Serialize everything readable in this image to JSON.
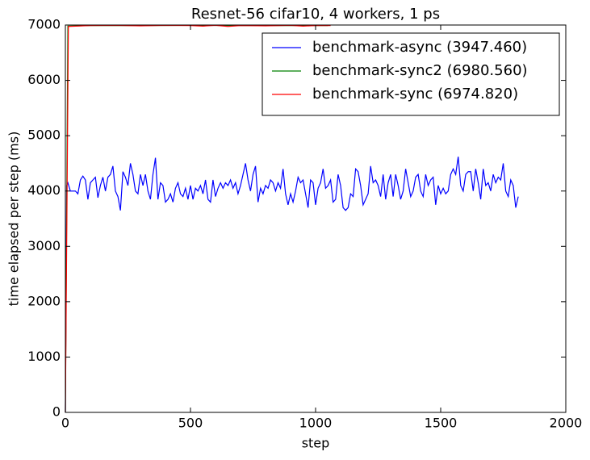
{
  "chart_data": {
    "type": "line",
    "title": "Resnet-56 cifar10, 4 workers, 1 ps",
    "x_label": "step",
    "y_label": "time elapsed per step (ms)",
    "xlim": [
      0,
      2000
    ],
    "xticks": [
      0,
      500,
      1000,
      1500,
      2000
    ],
    "ylim": [
      0,
      7000
    ],
    "yticks": [
      0,
      1000,
      2000,
      3000,
      4000,
      5000,
      6000,
      7000
    ],
    "legend": "upper right",
    "series": [
      {
        "name": "benchmark-async (3947.460)",
        "color": "#0000ff",
        "x": [
          0,
          5,
          10,
          20,
          30,
          40,
          50,
          60,
          70,
          80,
          90,
          100,
          110,
          120,
          130,
          140,
          150,
          160,
          170,
          180,
          190,
          200,
          210,
          220,
          230,
          240,
          250,
          260,
          270,
          280,
          290,
          300,
          310,
          320,
          330,
          340,
          350,
          360,
          370,
          380,
          390,
          400,
          410,
          420,
          430,
          440,
          450,
          460,
          470,
          480,
          490,
          500,
          510,
          520,
          530,
          540,
          550,
          560,
          570,
          580,
          590,
          600,
          610,
          620,
          630,
          640,
          650,
          660,
          670,
          680,
          690,
          700,
          710,
          720,
          730,
          740,
          750,
          760,
          770,
          780,
          790,
          800,
          810,
          820,
          830,
          840,
          850,
          860,
          870,
          880,
          890,
          900,
          910,
          920,
          930,
          940,
          950,
          960,
          970,
          980,
          990,
          1000,
          1010,
          1020,
          1030,
          1040,
          1050,
          1060,
          1070,
          1080,
          1090,
          1100,
          1110,
          1120,
          1130,
          1140,
          1150,
          1160,
          1170,
          1180,
          1190,
          1200,
          1210,
          1220,
          1230,
          1240,
          1250,
          1260,
          1270,
          1280,
          1290,
          1300,
          1310,
          1320,
          1330,
          1340,
          1350,
          1360,
          1370,
          1380,
          1390,
          1400,
          1410,
          1420,
          1430,
          1440,
          1450,
          1460,
          1470,
          1480,
          1490,
          1500,
          1510,
          1520,
          1530,
          1540,
          1550,
          1560,
          1570,
          1580,
          1590,
          1600,
          1610,
          1620,
          1630,
          1640,
          1650,
          1660,
          1670,
          1680,
          1690,
          1700,
          1710,
          1720,
          1730,
          1740,
          1750,
          1760,
          1770,
          1780,
          1790,
          1800,
          1810
        ],
        "values": [
          0,
          4100,
          4150,
          4000,
          4000,
          4000,
          3950,
          4200,
          4270,
          4200,
          3850,
          4150,
          4200,
          4250,
          3880,
          4100,
          4250,
          4000,
          4250,
          4300,
          4450,
          4000,
          3900,
          3650,
          4350,
          4250,
          4100,
          4500,
          4300,
          4000,
          3950,
          4300,
          4100,
          4300,
          4000,
          3850,
          4300,
          4600,
          3850,
          4150,
          4100,
          3800,
          3850,
          3950,
          3800,
          4050,
          4150,
          3950,
          3900,
          4050,
          3850,
          4100,
          3850,
          4050,
          4000,
          4100,
          3950,
          4200,
          3850,
          3800,
          4200,
          3900,
          4050,
          4150,
          4050,
          4150,
          4100,
          4200,
          4050,
          4150,
          3950,
          4100,
          4300,
          4500,
          4200,
          4000,
          4300,
          4450,
          3800,
          4050,
          3950,
          4100,
          4050,
          4200,
          4150,
          4000,
          4150,
          4050,
          4400,
          3950,
          3750,
          3950,
          3800,
          4000,
          4250,
          4150,
          4200,
          3950,
          3700,
          4200,
          4150,
          3750,
          4050,
          4150,
          4400,
          4050,
          4100,
          4200,
          3800,
          3850,
          4300,
          4100,
          3700,
          3650,
          3700,
          3950,
          3900,
          4400,
          4350,
          4100,
          3750,
          3850,
          3950,
          4450,
          4150,
          4200,
          4100,
          3900,
          4300,
          3850,
          4150,
          4300,
          3900,
          4300,
          4100,
          3850,
          4000,
          4400,
          4150,
          3900,
          4000,
          4250,
          4300,
          4000,
          3900,
          4300,
          4100,
          4200,
          4250,
          3750,
          4100,
          3950,
          4050,
          3950,
          4000,
          4300,
          4400,
          4300,
          4620,
          4100,
          4000,
          4300,
          4350,
          4350,
          4000,
          4400,
          4150,
          3850,
          4400,
          4100,
          4150,
          4000,
          4300,
          4150,
          4250,
          4200,
          4500,
          4000,
          3900,
          4200,
          4100,
          3700,
          3900
        ]
      },
      {
        "name": "benchmark-sync2 (6980.560)",
        "color": "#008000",
        "x": [
          0,
          10,
          100,
          300,
          500,
          700,
          900,
          1050
        ],
        "values": [
          0,
          6980,
          6990,
          6990,
          6995,
          6990,
          6990,
          6990
        ]
      },
      {
        "name": "benchmark-sync (6974.820)",
        "color": "#ff0000",
        "x": [
          0,
          12,
          100,
          200,
          300,
          400,
          500,
          550,
          600,
          650,
          700,
          800,
          900,
          950,
          1000,
          1060
        ],
        "values": [
          0,
          6975,
          6990,
          6995,
          6985,
          6995,
          6990,
          6980,
          6995,
          6975,
          6990,
          6985,
          6995,
          6980,
          6990,
          6990
        ]
      }
    ]
  }
}
